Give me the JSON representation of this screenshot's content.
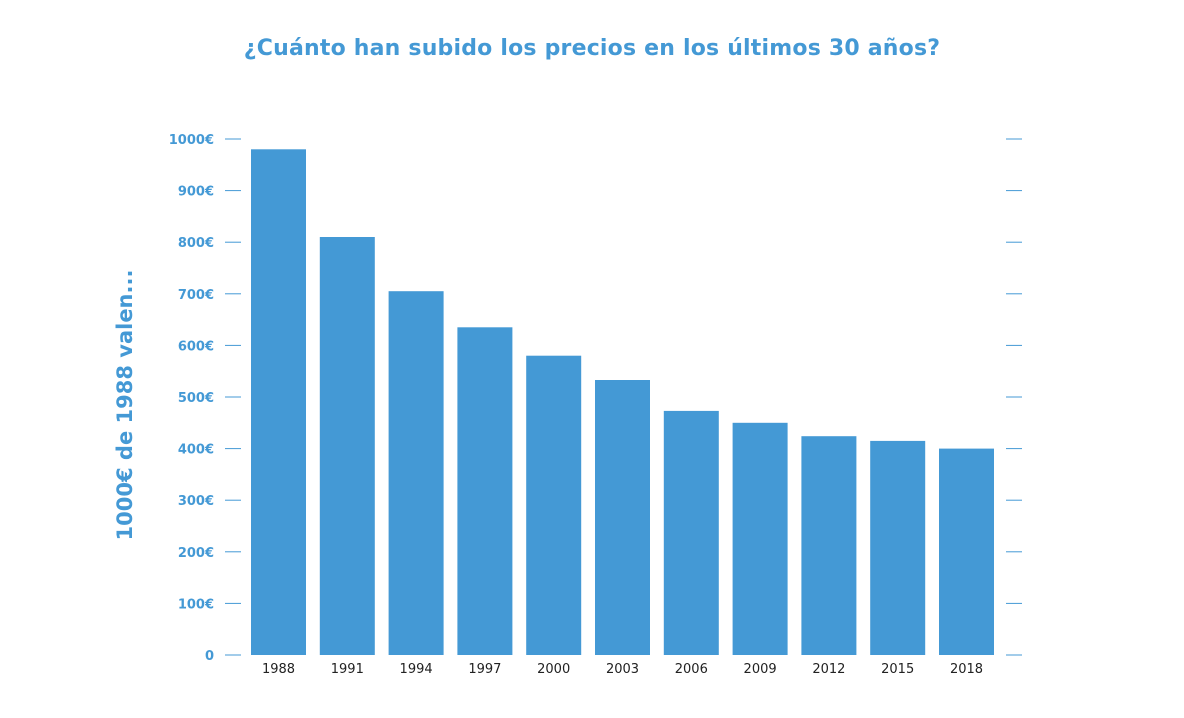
{
  "chart_data": {
    "type": "bar",
    "title": "¿Cuánto han subido los precios en los últimos 30 años?",
    "xlabel": "",
    "ylabel": "1000€ de 1988 valen...",
    "categories": [
      "1988",
      "1991",
      "1994",
      "1997",
      "2000",
      "2003",
      "2006",
      "2009",
      "2012",
      "2015",
      "2018"
    ],
    "values": [
      980,
      810,
      705,
      635,
      580,
      533,
      473,
      450,
      424,
      415,
      400
    ],
    "ylim": [
      0,
      1000
    ],
    "yticks": [
      0,
      100,
      200,
      300,
      400,
      500,
      600,
      700,
      800,
      900,
      1000
    ],
    "ytick_labels": [
      "0",
      "100€",
      "200€",
      "300€",
      "400€",
      "500€",
      "600€",
      "700€",
      "800€",
      "900€",
      "1000€"
    ],
    "grid": false,
    "legend": "none",
    "colors": {
      "bar": "#4499d5",
      "title": "#4499d5",
      "axis_labels": "#4499d5",
      "x_tick_labels": "#222222"
    }
  }
}
